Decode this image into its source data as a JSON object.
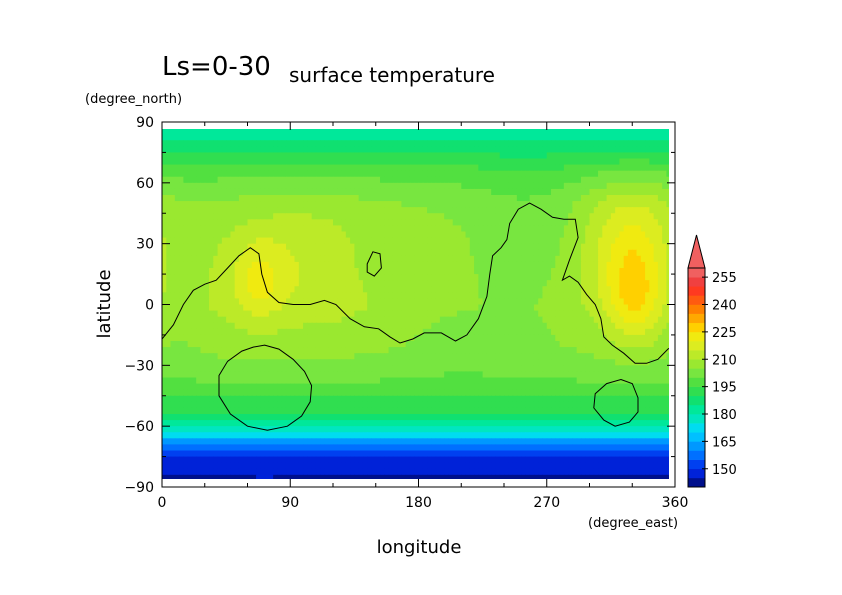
{
  "chart_data": {
    "type": "heatmap",
    "title": "Ls=0-30",
    "subtitle": "surface temperature",
    "xlabel": "longitude",
    "ylabel": "latitude",
    "x_unit": "(degree_east)",
    "y_unit": "(degree_north)",
    "xlim": [
      0,
      360
    ],
    "ylim": [
      -90,
      90
    ],
    "xticks": [
      0,
      90,
      180,
      270,
      360
    ],
    "yticks": [
      90,
      60,
      30,
      0,
      -30,
      -60,
      -90
    ],
    "xtick_labels": [
      "0",
      "90",
      "180",
      "270",
      "360"
    ],
    "ytick_labels": [
      "90",
      "60",
      "30",
      "0",
      "−30",
      "−60",
      "−90"
    ],
    "colorbar": {
      "levels": [
        140,
        145,
        150,
        155,
        160,
        165,
        170,
        175,
        180,
        185,
        190,
        195,
        200,
        205,
        210,
        215,
        220,
        225,
        230,
        235,
        240,
        245,
        250,
        255,
        260
      ],
      "colors": [
        "#00108c",
        "#0022d8",
        "#0040f0",
        "#0070ff",
        "#0098ff",
        "#00c0ff",
        "#00dcf0",
        "#00e6c0",
        "#00e89a",
        "#10e070",
        "#30de50",
        "#52e040",
        "#78e640",
        "#9ae830",
        "#bcea28",
        "#dcec20",
        "#f0ea10",
        "#ffd000",
        "#ffa800",
        "#ff8000",
        "#ff5a10",
        "#ff3a20",
        "#f04040",
        "#f06060"
      ],
      "tick_labels": [
        "150",
        "165",
        "180",
        "195",
        "210",
        "225",
        "240",
        "255"
      ],
      "tick_values": [
        150,
        165,
        180,
        195,
        210,
        225,
        240,
        255
      ],
      "extend": "max",
      "placement": "right"
    },
    "field": {
      "lat_profile": [
        {
          "lat": 85,
          "t": 183
        },
        {
          "lat": 75,
          "t": 190
        },
        {
          "lat": 65,
          "t": 198
        },
        {
          "lat": 50,
          "t": 205
        },
        {
          "lat": 30,
          "t": 209
        },
        {
          "lat": 10,
          "t": 211
        },
        {
          "lat": 0,
          "t": 211
        },
        {
          "lat": -20,
          "t": 207
        },
        {
          "lat": -35,
          "t": 202
        },
        {
          "lat": -45,
          "t": 196
        },
        {
          "lat": -55,
          "t": 189
        },
        {
          "lat": -62,
          "t": 177
        },
        {
          "lat": -67,
          "t": 165
        },
        {
          "lat": -72,
          "t": 155
        },
        {
          "lat": -78,
          "t": 148
        },
        {
          "lat": -85,
          "t": 145
        }
      ],
      "anomalies": [
        {
          "lon": 68,
          "lat": 12,
          "amp": 9,
          "slon": 12,
          "slat": 14
        },
        {
          "lon": 100,
          "lat": 28,
          "amp": 5,
          "slon": 35,
          "slat": 22
        },
        {
          "lon": 330,
          "lat": 25,
          "amp": 13,
          "slon": 20,
          "slat": 16
        },
        {
          "lon": 332,
          "lat": 0,
          "amp": 12,
          "slon": 14,
          "slat": 14
        },
        {
          "lon": 330,
          "lat": 50,
          "amp": 6,
          "slon": 25,
          "slat": 12
        },
        {
          "lon": 255,
          "lat": 20,
          "amp": -7,
          "slon": 28,
          "slat": 30
        },
        {
          "lon": 200,
          "lat": -5,
          "amp": -4,
          "slon": 30,
          "slat": 25
        },
        {
          "lon": 10,
          "lat": 10,
          "amp": -5,
          "slon": 15,
          "slat": 25
        },
        {
          "lon": 150,
          "lat": 20,
          "amp": -3,
          "slon": 25,
          "slat": 15
        }
      ]
    },
    "contours": [
      {
        "name": "dichotomy",
        "closed": false,
        "points": [
          [
            0,
            -17
          ],
          [
            8,
            -10
          ],
          [
            15,
            0
          ],
          [
            22,
            7
          ],
          [
            30,
            10
          ],
          [
            38,
            12
          ],
          [
            46,
            18
          ],
          [
            54,
            24
          ],
          [
            62,
            28
          ],
          [
            68,
            25
          ],
          [
            70,
            15
          ],
          [
            74,
            6
          ],
          [
            82,
            1
          ],
          [
            92,
            0
          ],
          [
            104,
            0
          ],
          [
            114,
            2
          ],
          [
            122,
            0
          ],
          [
            132,
            -7
          ],
          [
            142,
            -11
          ],
          [
            152,
            -12
          ],
          [
            160,
            -16
          ],
          [
            167,
            -19
          ],
          [
            176,
            -17
          ],
          [
            184,
            -14
          ],
          [
            196,
            -14
          ],
          [
            206,
            -18
          ],
          [
            214,
            -15
          ],
          [
            222,
            -7
          ],
          [
            228,
            4
          ],
          [
            230,
            15
          ],
          [
            232,
            24
          ],
          [
            238,
            28
          ],
          [
            242,
            32
          ],
          [
            244,
            40
          ],
          [
            250,
            47
          ],
          [
            258,
            50
          ],
          [
            266,
            47
          ],
          [
            274,
            43
          ],
          [
            282,
            42
          ],
          [
            290,
            42
          ],
          [
            292,
            33
          ],
          [
            286,
            22
          ],
          [
            281,
            12
          ],
          [
            286,
            14
          ],
          [
            292,
            11
          ],
          [
            298,
            5
          ],
          [
            304,
            0
          ],
          [
            308,
            -7
          ],
          [
            310,
            -16
          ],
          [
            316,
            -20
          ],
          [
            324,
            -24
          ],
          [
            332,
            -29
          ],
          [
            340,
            -29
          ],
          [
            348,
            -27
          ],
          [
            355,
            -22
          ],
          [
            360,
            -20
          ]
        ]
      },
      {
        "name": "hellas",
        "closed": true,
        "points": [
          [
            72,
            -20
          ],
          [
            82,
            -22
          ],
          [
            92,
            -27
          ],
          [
            100,
            -33
          ],
          [
            105,
            -40
          ],
          [
            104,
            -48
          ],
          [
            98,
            -55
          ],
          [
            88,
            -60
          ],
          [
            74,
            -62
          ],
          [
            60,
            -60
          ],
          [
            48,
            -54
          ],
          [
            40,
            -45
          ],
          [
            40,
            -35
          ],
          [
            46,
            -28
          ],
          [
            56,
            -23
          ],
          [
            64,
            -21
          ]
        ]
      },
      {
        "name": "elysium",
        "closed": true,
        "points": [
          [
            144,
            20
          ],
          [
            148,
            26
          ],
          [
            153,
            25
          ],
          [
            154,
            18
          ],
          [
            149,
            14
          ],
          [
            144,
            16
          ]
        ]
      },
      {
        "name": "argyre",
        "closed": true,
        "points": [
          [
            322,
            -37
          ],
          [
            330,
            -39
          ],
          [
            334,
            -46
          ],
          [
            334,
            -53
          ],
          [
            328,
            -58
          ],
          [
            318,
            -60
          ],
          [
            310,
            -57
          ],
          [
            303,
            -51
          ],
          [
            304,
            -44
          ],
          [
            312,
            -39
          ]
        ]
      }
    ]
  }
}
